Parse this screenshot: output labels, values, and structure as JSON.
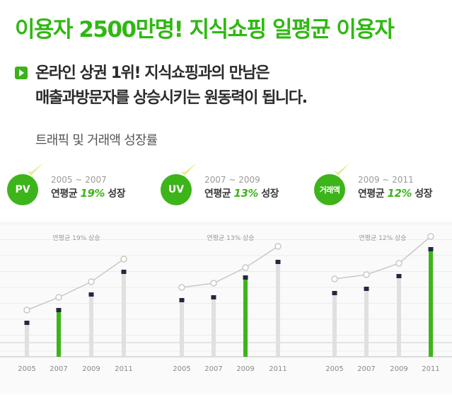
{
  "headline": "이용자 2500만명! 지식쇼핑 일평균 이용자",
  "lead": {
    "line1": "온라인 상권 1위!  지식쇼핑과의 만남은",
    "line2": "매출과방문자를 상승시키는 원동력이 됩니다."
  },
  "section_title": "트래픽 및 거래액 성장률",
  "colors": {
    "accent": "#3db41a",
    "headline": "#2fb812",
    "bar_gray": "#e0e0e0",
    "marker": "#242840",
    "line": "#c8c8c8"
  },
  "metrics": [
    {
      "badge": "PV",
      "period": "2005 ~ 2007",
      "label": "연평균",
      "rate": "19%",
      "suffix": "성장"
    },
    {
      "badge": "UV",
      "period": "2007 ~ 2009",
      "label": "연평균",
      "rate": "13%",
      "suffix": "성장"
    },
    {
      "badge": "거래액",
      "period": "2009 ~ 2011",
      "label": "연평균",
      "rate": "12%",
      "suffix": "성장"
    }
  ],
  "chart_data": [
    {
      "type": "bar",
      "title": "연평균 19% 상승",
      "categories": [
        "2005",
        "2007",
        "2009",
        "2011"
      ],
      "values": [
        24,
        33,
        44,
        60
      ],
      "line_values": [
        33,
        42,
        53,
        69
      ],
      "highlight": "2007",
      "ylim": [
        0,
        100
      ]
    },
    {
      "type": "bar",
      "title": "연평균 13% 상승",
      "categories": [
        "2005",
        "2007",
        "2009",
        "2011"
      ],
      "values": [
        40,
        42,
        56,
        67
      ],
      "line_values": [
        49,
        52,
        63,
        78
      ],
      "highlight": "2009",
      "ylim": [
        0,
        100
      ]
    },
    {
      "type": "bar",
      "title": "연평균 12% 상승",
      "categories": [
        "2005",
        "2007",
        "2009",
        "2011"
      ],
      "values": [
        45,
        48,
        57,
        76
      ],
      "line_values": [
        55,
        58,
        66,
        85
      ],
      "highlight": "2011",
      "ylim": [
        0,
        100
      ]
    }
  ]
}
